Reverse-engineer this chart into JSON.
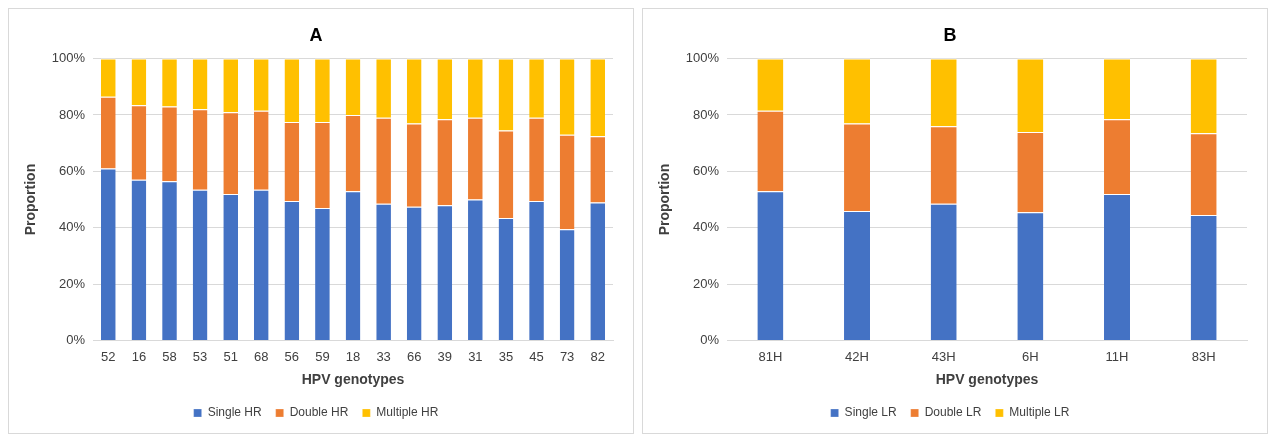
{
  "chart_data": [
    {
      "type": "bar",
      "stacked": true,
      "title": "A",
      "xlabel": "HPV genotypes",
      "ylabel": "Proportion",
      "categories": [
        "52",
        "16",
        "58",
        "53",
        "51",
        "68",
        "56",
        "59",
        "18",
        "33",
        "66",
        "39",
        "31",
        "35",
        "45",
        "73",
        "82"
      ],
      "series": [
        {
          "name": "Single HR",
          "color": "#4472c4",
          "values": [
            61,
            57,
            56.5,
            53.5,
            52,
            53.5,
            49.5,
            47,
            53,
            48.5,
            47.5,
            48,
            50,
            43.5,
            49.5,
            39.5,
            49
          ]
        },
        {
          "name": "Double HR",
          "color": "#ed7d31",
          "values": [
            25.5,
            26.5,
            26.5,
            28.5,
            29,
            28,
            28,
            30.5,
            27,
            30.5,
            29.5,
            30.5,
            29,
            31,
            29.5,
            33.5,
            23.5
          ]
        },
        {
          "name": "Multiple HR",
          "color": "#ffc000",
          "values": [
            13.5,
            16.5,
            17,
            18,
            19,
            18.5,
            22.5,
            22.5,
            20,
            21,
            23,
            21.5,
            21,
            25.5,
            21,
            27,
            27.5
          ]
        }
      ],
      "ylim": [
        0,
        100
      ],
      "yticks": [
        {
          "value": 0,
          "label": "0%"
        },
        {
          "value": 20,
          "label": "20%"
        },
        {
          "value": 40,
          "label": "40%"
        },
        {
          "value": 60,
          "label": "60%"
        },
        {
          "value": 80,
          "label": "80%"
        },
        {
          "value": 100,
          "label": "100%"
        }
      ],
      "grid": "y",
      "legend": "bottom"
    },
    {
      "type": "bar",
      "stacked": true,
      "title": "B",
      "xlabel": "HPV genotypes",
      "ylabel": "Proportion",
      "categories": [
        "81H",
        "42H",
        "43H",
        "6H",
        "11H",
        "83H"
      ],
      "series": [
        {
          "name": "Single LR",
          "color": "#4472c4",
          "values": [
            53,
            46,
            48.5,
            45.5,
            52,
            44.5
          ]
        },
        {
          "name": "Double LR",
          "color": "#ed7d31",
          "values": [
            28.5,
            31,
            27.5,
            28.5,
            26.5,
            29
          ]
        },
        {
          "name": "Multiple LR",
          "color": "#ffc000",
          "values": [
            18.5,
            23,
            24,
            26,
            21.5,
            26.5
          ]
        }
      ],
      "ylim": [
        0,
        100
      ],
      "yticks": [
        {
          "value": 0,
          "label": "0%"
        },
        {
          "value": 20,
          "label": "20%"
        },
        {
          "value": 40,
          "label": "40%"
        },
        {
          "value": 60,
          "label": "60%"
        },
        {
          "value": 80,
          "label": "80%"
        },
        {
          "value": 100,
          "label": "100%"
        }
      ],
      "grid": "y",
      "legend": "bottom"
    }
  ]
}
